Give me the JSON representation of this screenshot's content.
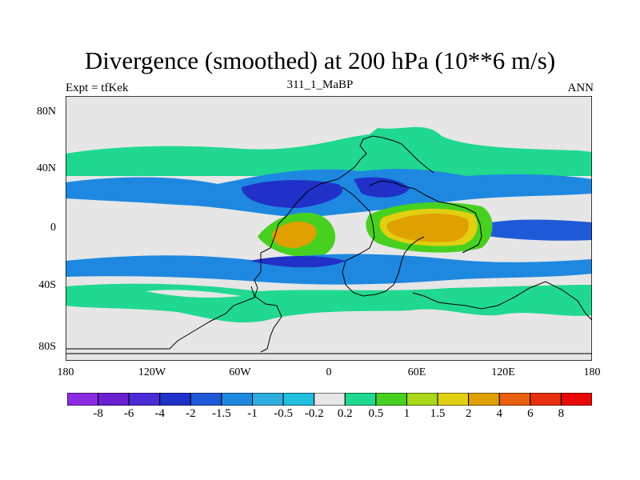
{
  "title": "Divergence (smoothed) at 200 hPa (10**6 m/s)",
  "left_string": "Expt = tfKek",
  "center_string": "311_1_MaBP",
  "right_string": "ANN",
  "map": {
    "background_color": "#e6e6e6",
    "lat_labels": [
      "80N",
      "40N",
      "0",
      "40S",
      "80S"
    ],
    "lon_labels": [
      "180",
      "120W",
      "60W",
      "0",
      "60E",
      "120E",
      "180"
    ]
  },
  "legend": {
    "labels": [
      "-8",
      "-6",
      "-4",
      "-2",
      "-1.5",
      "-1",
      "-0.5",
      "-0.2",
      "0.2",
      "0.5",
      "1",
      "1.5",
      "2",
      "4",
      "6",
      "8"
    ],
    "colors": [
      "#8a2be2",
      "#6a1fd0",
      "#4b2bd8",
      "#2030c8",
      "#1e5ad8",
      "#1e88e0",
      "#2eaee0",
      "#1fc0e0",
      "#e6e6e6",
      "#20d890",
      "#48d020",
      "#a8d818",
      "#e0d010",
      "#e0a000",
      "#e86010",
      "#e83010",
      "#e80808"
    ]
  }
}
